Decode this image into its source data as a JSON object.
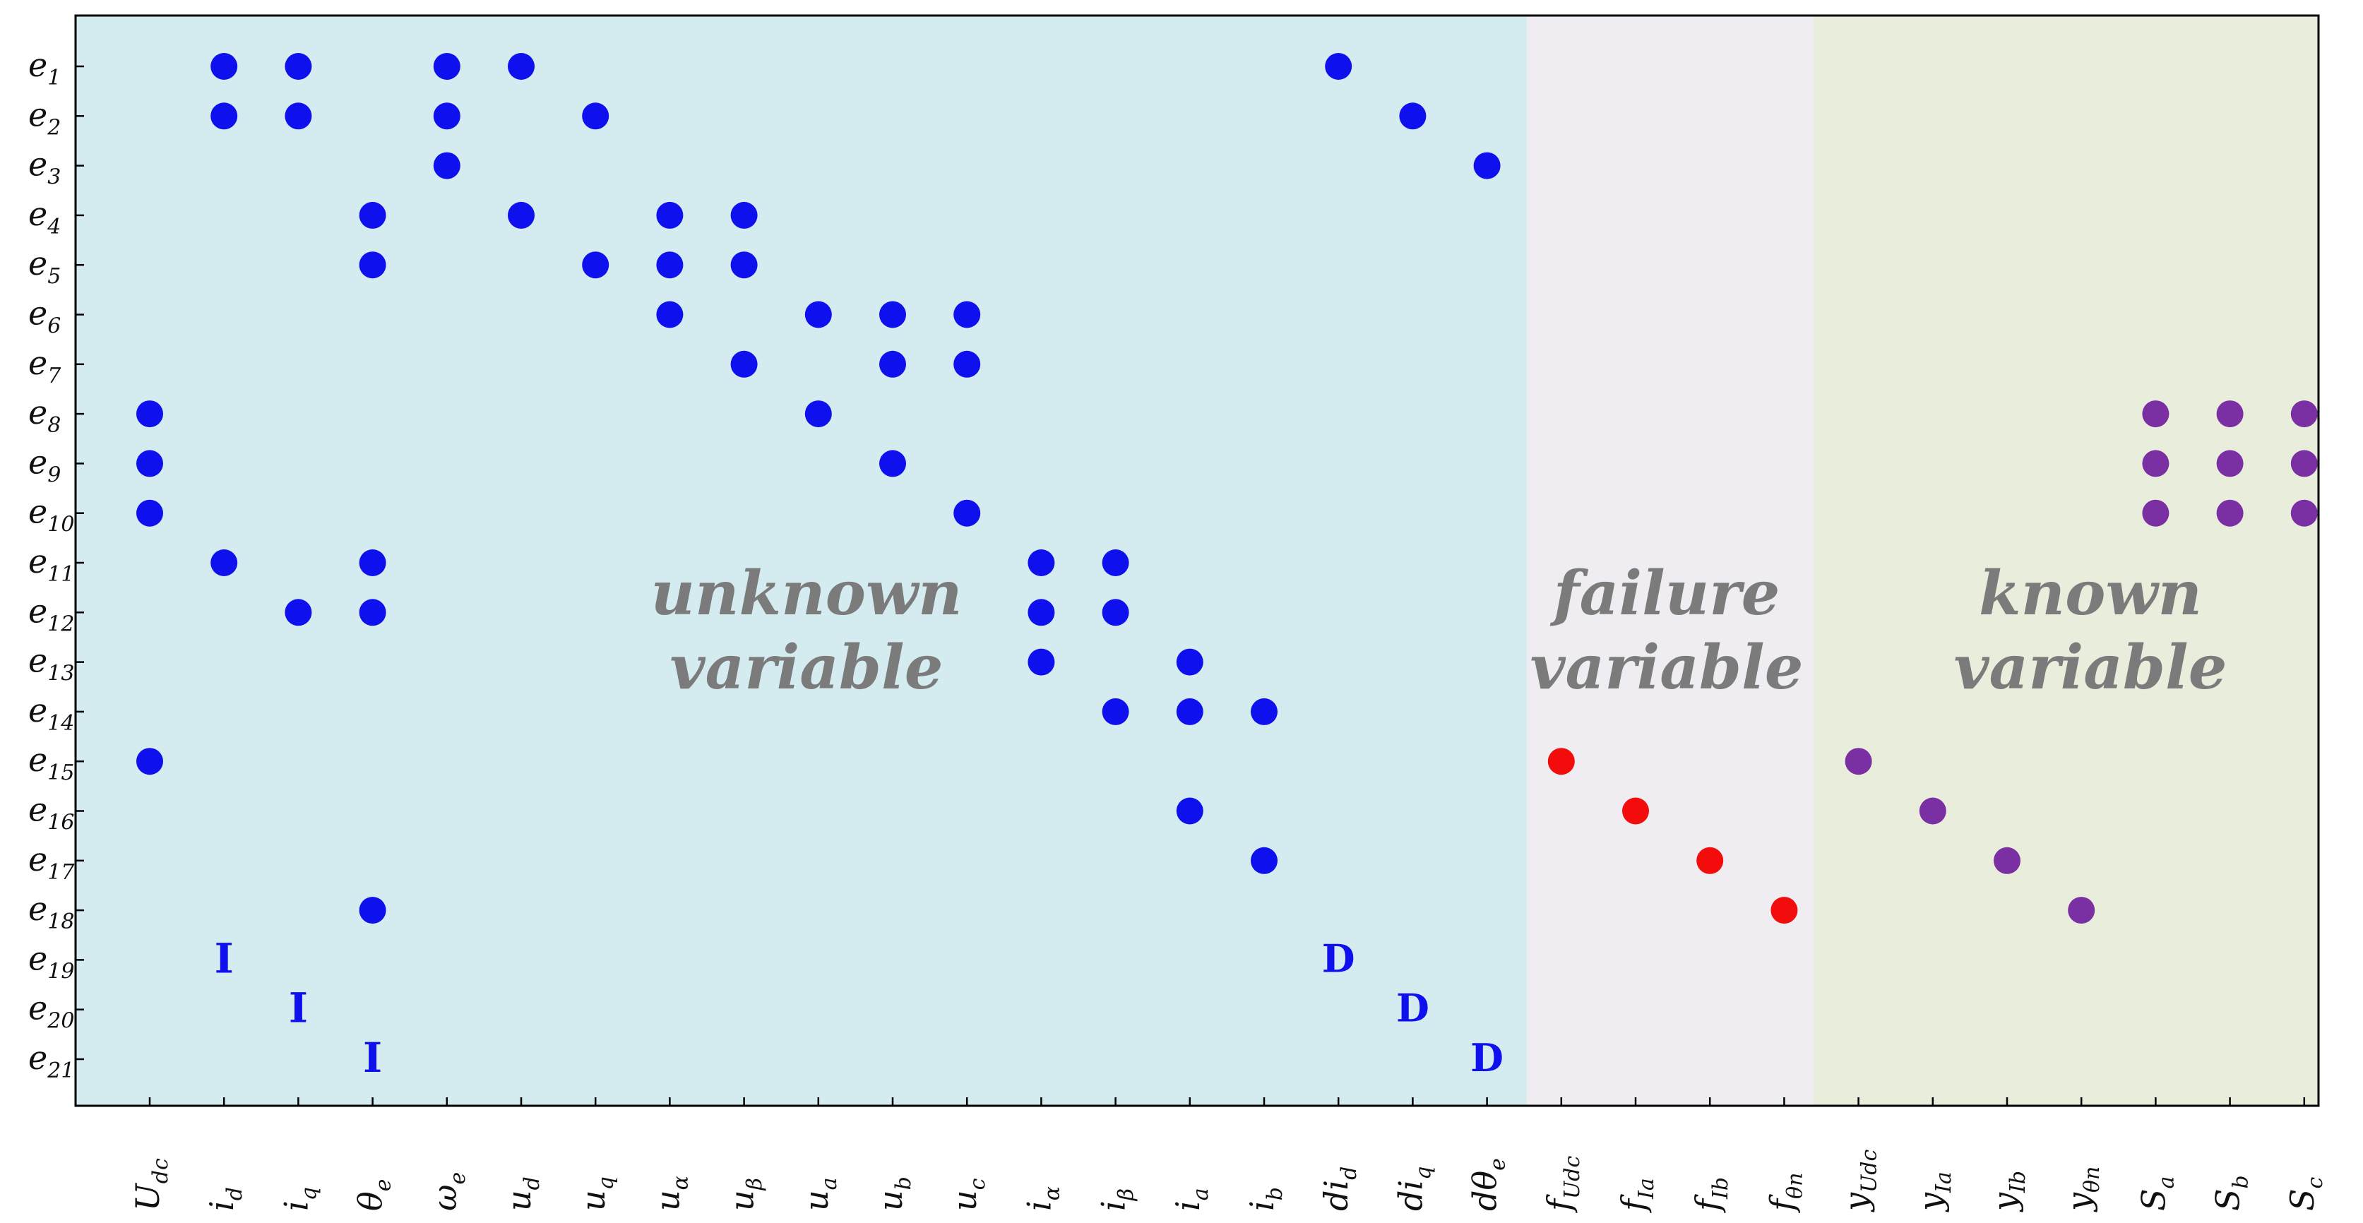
{
  "colors": {
    "unknown_bg": "#d4ebf0",
    "failure_bg": "#efedf1",
    "known_bg": "#e9eedc",
    "unknown_dot": "#0f10ee",
    "failure_dot": "#f20c0c",
    "known_dot": "#7a2fa3",
    "region_text": "#7b7b7b"
  },
  "regions": [
    {
      "id": "unknown",
      "line1": "unknown",
      "line2": "variable",
      "from_col": 0,
      "to_col": 18
    },
    {
      "id": "failure",
      "line1": "failure",
      "line2": "variable",
      "from_col": 19,
      "to_col": 22
    },
    {
      "id": "known",
      "line1": "known",
      "line2": "variable",
      "from_col": 23,
      "to_col": 29
    }
  ],
  "rows": [
    {
      "base": "e",
      "sub": "1"
    },
    {
      "base": "e",
      "sub": "2"
    },
    {
      "base": "e",
      "sub": "3"
    },
    {
      "base": "e",
      "sub": "4"
    },
    {
      "base": "e",
      "sub": "5"
    },
    {
      "base": "e",
      "sub": "6"
    },
    {
      "base": "e",
      "sub": "7"
    },
    {
      "base": "e",
      "sub": "8"
    },
    {
      "base": "e",
      "sub": "9"
    },
    {
      "base": "e",
      "sub": "10"
    },
    {
      "base": "e",
      "sub": "11"
    },
    {
      "base": "e",
      "sub": "12"
    },
    {
      "base": "e",
      "sub": "13"
    },
    {
      "base": "e",
      "sub": "14"
    },
    {
      "base": "e",
      "sub": "15"
    },
    {
      "base": "e",
      "sub": "16"
    },
    {
      "base": "e",
      "sub": "17"
    },
    {
      "base": "e",
      "sub": "18"
    },
    {
      "base": "e",
      "sub": "19"
    },
    {
      "base": "e",
      "sub": "20"
    },
    {
      "base": "e",
      "sub": "21"
    }
  ],
  "columns": [
    {
      "base": "U",
      "sub": "dc"
    },
    {
      "base": "i",
      "sub": "d"
    },
    {
      "base": "i",
      "sub": "q"
    },
    {
      "base": "θ",
      "sub": "e"
    },
    {
      "base": "ω",
      "sub": "e"
    },
    {
      "base": "u",
      "sub": "d"
    },
    {
      "base": "u",
      "sub": "q"
    },
    {
      "base": "u",
      "sub": "α"
    },
    {
      "base": "u",
      "sub": "β"
    },
    {
      "base": "u",
      "sub": "a"
    },
    {
      "base": "u",
      "sub": "b"
    },
    {
      "base": "u",
      "sub": "c"
    },
    {
      "base": "i",
      "sub": "α"
    },
    {
      "base": "i",
      "sub": "β"
    },
    {
      "base": "i",
      "sub": "a"
    },
    {
      "base": "i",
      "sub": "b"
    },
    {
      "base": "di",
      "sub": "d"
    },
    {
      "base": "di",
      "sub": "q"
    },
    {
      "base": "dθ",
      "sub": "e"
    },
    {
      "base": "f",
      "sub": "Udc"
    },
    {
      "base": "f",
      "sub": "Ia"
    },
    {
      "base": "f",
      "sub": "Ib"
    },
    {
      "base": "f",
      "sub": "θn"
    },
    {
      "base": "y",
      "sub": "Udc"
    },
    {
      "base": "y",
      "sub": "Ia"
    },
    {
      "base": "y",
      "sub": "Ib"
    },
    {
      "base": "y",
      "sub": "θn"
    },
    {
      "base": "S",
      "sub": "a"
    },
    {
      "base": "S",
      "sub": "b"
    },
    {
      "base": "S",
      "sub": "c"
    }
  ],
  "dots": [
    {
      "row": 1,
      "col": 2,
      "kind": "unknown"
    },
    {
      "row": 1,
      "col": 3,
      "kind": "unknown"
    },
    {
      "row": 1,
      "col": 5,
      "kind": "unknown"
    },
    {
      "row": 1,
      "col": 6,
      "kind": "unknown"
    },
    {
      "row": 1,
      "col": 17,
      "kind": "unknown"
    },
    {
      "row": 2,
      "col": 2,
      "kind": "unknown"
    },
    {
      "row": 2,
      "col": 3,
      "kind": "unknown"
    },
    {
      "row": 2,
      "col": 5,
      "kind": "unknown"
    },
    {
      "row": 2,
      "col": 7,
      "kind": "unknown"
    },
    {
      "row": 2,
      "col": 18,
      "kind": "unknown"
    },
    {
      "row": 3,
      "col": 5,
      "kind": "unknown"
    },
    {
      "row": 3,
      "col": 19,
      "kind": "unknown"
    },
    {
      "row": 4,
      "col": 4,
      "kind": "unknown"
    },
    {
      "row": 4,
      "col": 6,
      "kind": "unknown"
    },
    {
      "row": 4,
      "col": 8,
      "kind": "unknown"
    },
    {
      "row": 4,
      "col": 9,
      "kind": "unknown"
    },
    {
      "row": 5,
      "col": 4,
      "kind": "unknown"
    },
    {
      "row": 5,
      "col": 7,
      "kind": "unknown"
    },
    {
      "row": 5,
      "col": 8,
      "kind": "unknown"
    },
    {
      "row": 5,
      "col": 9,
      "kind": "unknown"
    },
    {
      "row": 6,
      "col": 8,
      "kind": "unknown"
    },
    {
      "row": 6,
      "col": 10,
      "kind": "unknown"
    },
    {
      "row": 6,
      "col": 11,
      "kind": "unknown"
    },
    {
      "row": 6,
      "col": 12,
      "kind": "unknown"
    },
    {
      "row": 7,
      "col": 9,
      "kind": "unknown"
    },
    {
      "row": 7,
      "col": 11,
      "kind": "unknown"
    },
    {
      "row": 7,
      "col": 12,
      "kind": "unknown"
    },
    {
      "row": 8,
      "col": 1,
      "kind": "unknown"
    },
    {
      "row": 8,
      "col": 10,
      "kind": "unknown"
    },
    {
      "row": 8,
      "col": 28,
      "kind": "known"
    },
    {
      "row": 8,
      "col": 29,
      "kind": "known"
    },
    {
      "row": 8,
      "col": 30,
      "kind": "known"
    },
    {
      "row": 9,
      "col": 1,
      "kind": "unknown"
    },
    {
      "row": 9,
      "col": 11,
      "kind": "unknown"
    },
    {
      "row": 9,
      "col": 28,
      "kind": "known"
    },
    {
      "row": 9,
      "col": 29,
      "kind": "known"
    },
    {
      "row": 9,
      "col": 30,
      "kind": "known"
    },
    {
      "row": 10,
      "col": 1,
      "kind": "unknown"
    },
    {
      "row": 10,
      "col": 12,
      "kind": "unknown"
    },
    {
      "row": 10,
      "col": 28,
      "kind": "known"
    },
    {
      "row": 10,
      "col": 29,
      "kind": "known"
    },
    {
      "row": 10,
      "col": 30,
      "kind": "known"
    },
    {
      "row": 11,
      "col": 2,
      "kind": "unknown"
    },
    {
      "row": 11,
      "col": 4,
      "kind": "unknown"
    },
    {
      "row": 11,
      "col": 13,
      "kind": "unknown"
    },
    {
      "row": 11,
      "col": 14,
      "kind": "unknown"
    },
    {
      "row": 12,
      "col": 3,
      "kind": "unknown"
    },
    {
      "row": 12,
      "col": 4,
      "kind": "unknown"
    },
    {
      "row": 12,
      "col": 13,
      "kind": "unknown"
    },
    {
      "row": 12,
      "col": 14,
      "kind": "unknown"
    },
    {
      "row": 13,
      "col": 13,
      "kind": "unknown"
    },
    {
      "row": 13,
      "col": 15,
      "kind": "unknown"
    },
    {
      "row": 14,
      "col": 14,
      "kind": "unknown"
    },
    {
      "row": 14,
      "col": 15,
      "kind": "unknown"
    },
    {
      "row": 14,
      "col": 16,
      "kind": "unknown"
    },
    {
      "row": 15,
      "col": 1,
      "kind": "unknown"
    },
    {
      "row": 15,
      "col": 20,
      "kind": "failure"
    },
    {
      "row": 15,
      "col": 24,
      "kind": "known"
    },
    {
      "row": 16,
      "col": 15,
      "kind": "unknown"
    },
    {
      "row": 16,
      "col": 21,
      "kind": "failure"
    },
    {
      "row": 16,
      "col": 25,
      "kind": "known"
    },
    {
      "row": 17,
      "col": 16,
      "kind": "unknown"
    },
    {
      "row": 17,
      "col": 22,
      "kind": "failure"
    },
    {
      "row": 17,
      "col": 26,
      "kind": "known"
    },
    {
      "row": 18,
      "col": 4,
      "kind": "unknown"
    },
    {
      "row": 18,
      "col": 23,
      "kind": "failure"
    },
    {
      "row": 18,
      "col": 27,
      "kind": "known"
    }
  ],
  "text_markers": [
    {
      "row": 19,
      "col": 2,
      "label": "I"
    },
    {
      "row": 20,
      "col": 3,
      "label": "I"
    },
    {
      "row": 21,
      "col": 4,
      "label": "I"
    },
    {
      "row": 19,
      "col": 17,
      "label": "D"
    },
    {
      "row": 20,
      "col": 18,
      "label": "D"
    },
    {
      "row": 21,
      "col": 19,
      "label": "D"
    }
  ]
}
